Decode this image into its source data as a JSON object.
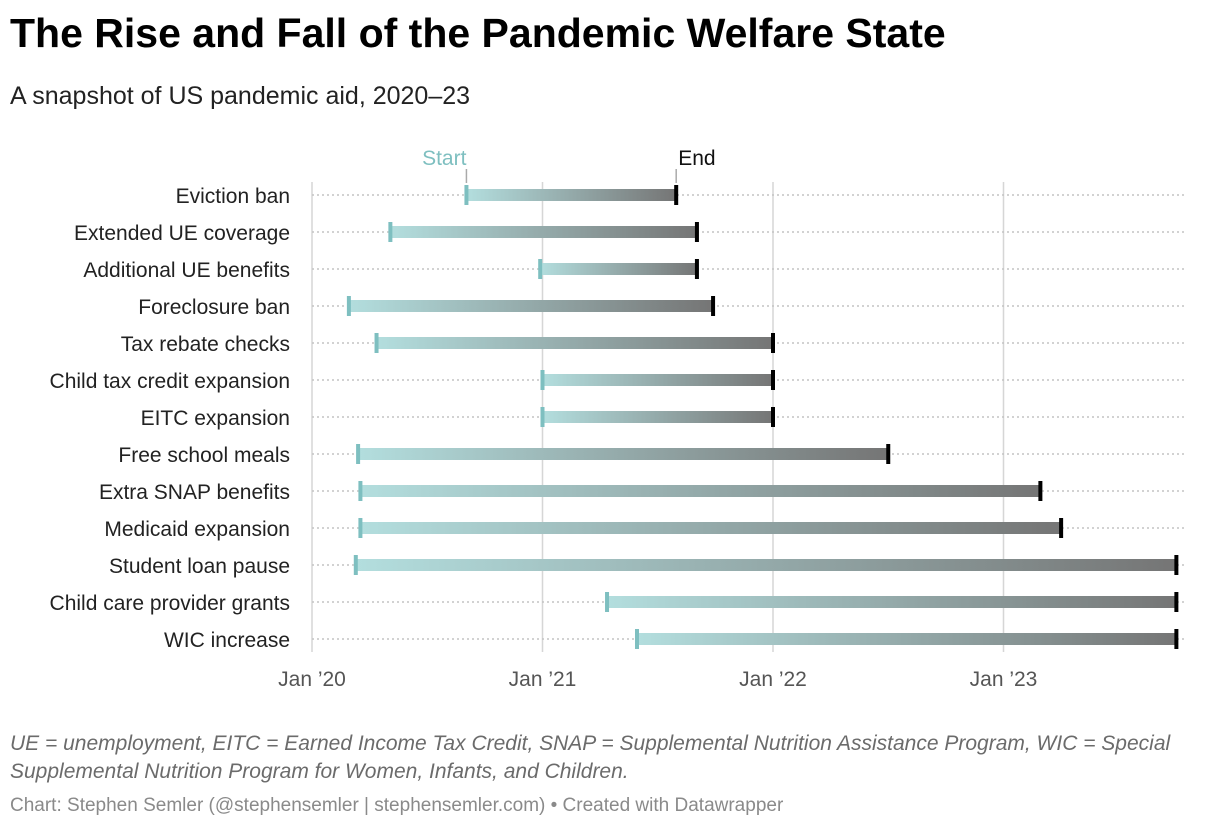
{
  "header": {
    "title": "The Rise and Fall of the Pandemic Welfare State",
    "subtitle": "A snapshot of US pandemic aid, 2020–23"
  },
  "footer": {
    "notes": "UE = unemployment, EITC = Earned Income Tax Credit, SNAP = Supplemental Nutrition Assistance Program, WIC = Special Supplemental Nutrition Program for Women, Infants, and Children.",
    "source": "Chart: Stephen Semler (@stephensemler | stephensemler.com) • Created with Datawrapper"
  },
  "colors": {
    "start": "#7ebfc0",
    "start_bar": "#b3dede",
    "end": "#000000",
    "end_bar": "#757575",
    "gridline": "#d6d6d6",
    "row_dots": "#c4c4c4",
    "label": "#222222",
    "tick_label": "#555555"
  },
  "chart_data": {
    "type": "range",
    "title": "The Rise and Fall of the Pandemic Welfare State",
    "subtitle": "A snapshot of US pandemic aid, 2020–23",
    "x_unit": "year (decimal)",
    "xlim": [
      2020.0,
      2023.8
    ],
    "x_ticks": [
      {
        "value": 2020,
        "label": "Jan ’20"
      },
      {
        "value": 2021,
        "label": "Jan ’21"
      },
      {
        "value": 2022,
        "label": "Jan ’22"
      },
      {
        "value": 2023,
        "label": "Jan ’23"
      }
    ],
    "legend": {
      "start": "Start",
      "end": "End"
    },
    "rows": [
      {
        "label": "Eviction ban",
        "start": 2020.67,
        "end": 2021.58
      },
      {
        "label": "Extended UE coverage",
        "start": 2020.34,
        "end": 2021.67
      },
      {
        "label": "Additional UE benefits",
        "start": 2020.99,
        "end": 2021.67
      },
      {
        "label": "Foreclosure ban",
        "start": 2020.16,
        "end": 2021.74
      },
      {
        "label": "Tax rebate checks",
        "start": 2020.28,
        "end": 2022.0
      },
      {
        "label": "Child tax credit expansion",
        "start": 2021.0,
        "end": 2022.0
      },
      {
        "label": "EITC expansion",
        "start": 2021.0,
        "end": 2022.0
      },
      {
        "label": "Free school meals",
        "start": 2020.2,
        "end": 2022.5
      },
      {
        "label": "Extra SNAP benefits",
        "start": 2020.21,
        "end": 2023.16
      },
      {
        "label": "Medicaid expansion",
        "start": 2020.21,
        "end": 2023.25
      },
      {
        "label": "Student loan pause",
        "start": 2020.19,
        "end": 2023.75
      },
      {
        "label": "Child care provider grants",
        "start": 2021.28,
        "end": 2023.75
      },
      {
        "label": "WIC increase",
        "start": 2021.41,
        "end": 2023.75
      }
    ]
  }
}
